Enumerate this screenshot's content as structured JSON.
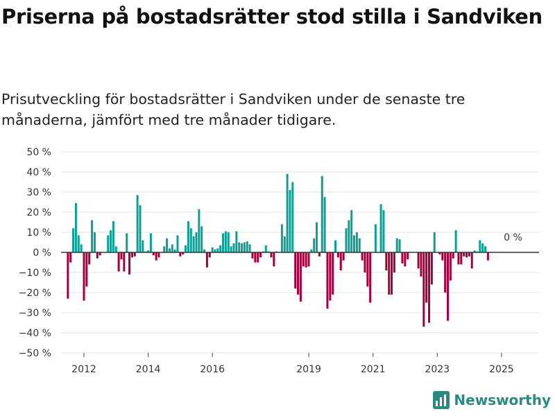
{
  "header": {
    "title": "Priserna på bostadsrätter stod stilla i Sandviken",
    "subtitle": "Prisutveckling för bostadsrätter i Sandviken under de senaste tre månaderna, jämfört med tre månader tidigare."
  },
  "brand": {
    "name": "Newsworthy",
    "icon": "bar-chart-logo-icon"
  },
  "colors": {
    "positive": "#0e9f94",
    "negative": "#a3003f",
    "grid": "#e3e3e3",
    "zero_line": "#333333",
    "brand": "#2a8a82"
  },
  "chart_data": {
    "type": "bar",
    "title": "Priserna på bostadsrätter stod stilla i Sandviken",
    "subtitle": "Prisutveckling för bostadsrätter i Sandviken under de senaste tre månaderna, jämfört med tre månader tidigare.",
    "xlabel": "",
    "ylabel": "",
    "ylim": [
      -50,
      50
    ],
    "y_ticks": [
      50,
      40,
      30,
      20,
      10,
      0,
      -10,
      -20,
      -30,
      -40,
      -50
    ],
    "y_tick_labels": [
      "50 %",
      "40 %",
      "30 %",
      "20 %",
      "10 %",
      "0 %",
      "−10 %",
      "−20 %",
      "−30 %",
      "−40 %",
      "−50 %"
    ],
    "x_ticks": [
      2012,
      2014,
      2016,
      2019,
      2021,
      2023,
      2025
    ],
    "x_tick_labels": [
      "2012",
      "2014",
      "2016",
      "2019",
      "2021",
      "2023",
      "2025"
    ],
    "grid": true,
    "annotations": [
      {
        "text": "0 %",
        "x": 2025.2,
        "y": 0
      }
    ],
    "x_start": 2011.5,
    "step": 0.0833,
    "values": [
      -23,
      -5,
      12,
      24.5,
      8.5,
      4,
      -24,
      -17,
      -6,
      16,
      10,
      -3,
      -1.5,
      0,
      0,
      8.5,
      11,
      15.5,
      3,
      -9.5,
      -3.5,
      -9.5,
      9.5,
      -11,
      -2.5,
      -2,
      28.5,
      23.5,
      6,
      0.5,
      1,
      9.5,
      -1.5,
      -4,
      -2.5,
      0,
      3,
      7,
      2,
      4,
      1.5,
      8.5,
      -2,
      -1,
      3.5,
      15.5,
      12,
      8,
      10,
      21.5,
      13,
      1.5,
      -7.5,
      -2.5,
      2.5,
      1.5,
      2,
      3.5,
      9.5,
      10.5,
      10,
      3,
      4.5,
      10.5,
      5,
      4.5,
      5,
      5.5,
      4,
      -3,
      -5,
      -5,
      -2.5,
      0.5,
      3.5,
      0.5,
      -2.5,
      -7,
      0.5,
      0,
      14,
      8,
      39,
      31,
      35,
      -18,
      -21,
      -24.5,
      -7,
      -7.5,
      -7,
      1.5,
      7,
      15,
      -2,
      38,
      27.5,
      -28,
      -24,
      -21,
      6,
      -2.5,
      -9,
      -4,
      12,
      16,
      21,
      8.5,
      10,
      7,
      -4,
      -10,
      -17,
      -25,
      0,
      14,
      0,
      24,
      21,
      -9,
      -21,
      -21,
      -10,
      7,
      6.5,
      -5.5,
      -7,
      -3.5,
      0,
      0,
      0,
      -8,
      -12,
      -37,
      -25,
      -35,
      -16,
      10,
      0,
      -1,
      -4,
      -20,
      -34,
      -14,
      -3,
      11,
      -6,
      -6,
      -2,
      -2.5,
      -2,
      -8,
      1,
      0.5,
      6,
      4.5,
      3,
      -4
    ]
  }
}
